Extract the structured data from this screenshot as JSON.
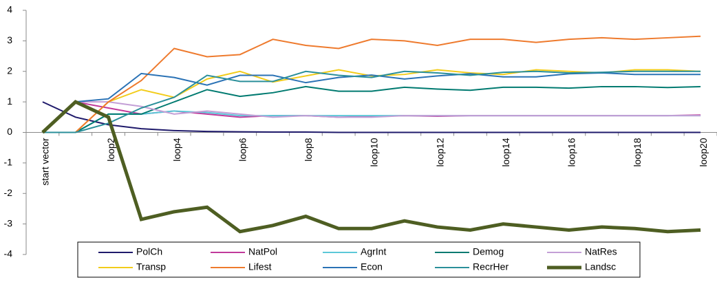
{
  "chart_data": {
    "type": "line",
    "categories": [
      "start vector",
      null,
      "loop2",
      null,
      "loop4",
      null,
      "loop6",
      null,
      "loop8",
      null,
      "loop10",
      null,
      "loop12",
      null,
      "loop14",
      null,
      "loop16",
      null,
      "loop18",
      null,
      "loop20"
    ],
    "ylim": [
      -4,
      4
    ],
    "yticks": [
      -4,
      -3,
      -2,
      -1,
      0,
      1,
      2,
      3,
      4
    ],
    "legend": "bottom",
    "series": [
      {
        "name": "PolCh",
        "color": "#1f1a6b",
        "values": [
          1,
          0.5,
          0.25,
          0.12,
          0.06,
          0.03,
          0.02,
          0.01,
          0.01,
          0,
          0,
          0,
          0,
          0,
          0,
          0,
          0,
          0,
          0,
          0,
          0
        ]
      },
      {
        "name": "NatPol",
        "color": "#c0399a",
        "values": [
          0,
          1,
          0.8,
          0.6,
          0.7,
          0.6,
          0.5,
          0.55,
          0.55,
          0.5,
          0.52,
          0.55,
          0.53,
          0.55,
          0.55,
          0.55,
          0.55,
          0.55,
          0.55,
          0.55,
          0.57
        ]
      },
      {
        "name": "AgrInt",
        "color": "#5bc8d8",
        "values": [
          0,
          0,
          0.6,
          0.6,
          0.7,
          0.65,
          0.55,
          0.55,
          0.55,
          0.55,
          0.55,
          0.55,
          0.55,
          0.55,
          0.55,
          0.55,
          0.55,
          0.55,
          0.55,
          0.55,
          0.55
        ]
      },
      {
        "name": "Demog",
        "color": "#007a70",
        "values": [
          0,
          0,
          0.6,
          0.6,
          1.0,
          1.4,
          1.18,
          1.3,
          1.5,
          1.35,
          1.35,
          1.48,
          1.42,
          1.38,
          1.48,
          1.48,
          1.45,
          1.5,
          1.5,
          1.47,
          1.5
        ]
      },
      {
        "name": "NatRes",
        "color": "#c39fd6",
        "values": [
          0,
          1,
          1,
          0.85,
          0.6,
          0.7,
          0.6,
          0.5,
          0.55,
          0.5,
          0.5,
          0.55,
          0.55,
          0.55,
          0.55,
          0.55,
          0.55,
          0.55,
          0.55,
          0.55,
          0.55
        ]
      },
      {
        "name": "Transp",
        "color": "#f2cc1a",
        "values": [
          0,
          0,
          1,
          1.4,
          1.15,
          1.75,
          2.0,
          1.65,
          1.85,
          2.05,
          1.85,
          1.9,
          2.05,
          1.95,
          1.9,
          2.05,
          2.0,
          1.95,
          2.05,
          2.05,
          2.0
        ]
      },
      {
        "name": "Lifest",
        "color": "#ee7a2d",
        "values": [
          0,
          0,
          1,
          1.7,
          2.75,
          2.48,
          2.55,
          3.05,
          2.85,
          2.75,
          3.05,
          3.0,
          2.85,
          3.05,
          3.05,
          2.95,
          3.05,
          3.1,
          3.05,
          3.1,
          3.15
        ]
      },
      {
        "name": "Econ",
        "color": "#2a72b5",
        "values": [
          0,
          1,
          1.1,
          1.93,
          1.8,
          1.55,
          1.87,
          1.87,
          1.63,
          1.8,
          1.88,
          1.75,
          1.85,
          1.92,
          1.82,
          1.82,
          1.92,
          1.95,
          1.9,
          1.9,
          1.9
        ]
      },
      {
        "name": "RecrHer",
        "color": "#2a8f9a",
        "values": [
          0,
          0,
          0.3,
          0.8,
          1.15,
          1.87,
          1.67,
          1.67,
          2.0,
          1.87,
          1.8,
          2.0,
          1.95,
          1.87,
          1.97,
          2.0,
          1.95,
          1.97,
          2.0,
          2.0,
          2.0
        ]
      },
      {
        "name": "Landsc",
        "color": "#4e5e22",
        "values": [
          0,
          1,
          0.5,
          -2.85,
          -2.6,
          -2.45,
          -3.25,
          -3.05,
          -2.75,
          -3.15,
          -3.15,
          -2.9,
          -3.1,
          -3.2,
          -3.0,
          -3.1,
          -3.2,
          -3.1,
          -3.15,
          -3.25,
          -3.2
        ]
      }
    ]
  }
}
